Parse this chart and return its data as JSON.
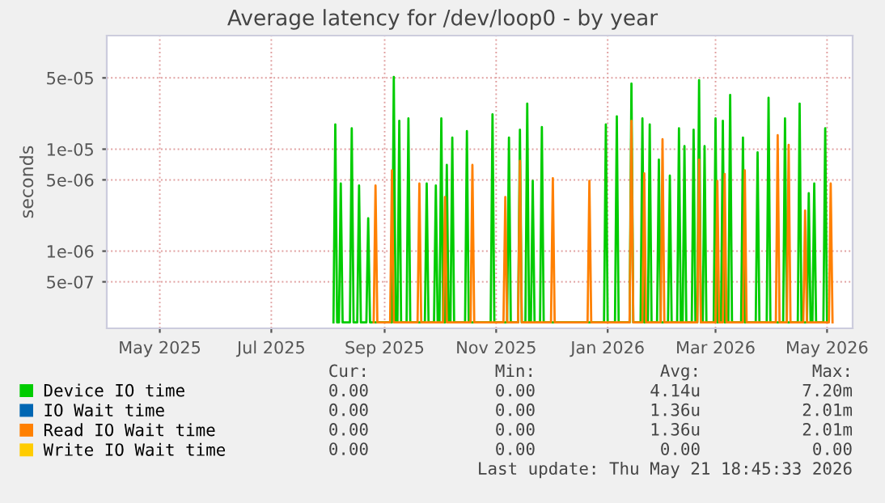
{
  "chart_data": {
    "type": "line",
    "title": "Average latency for /dev/loop0 - by year",
    "ylabel": "seconds",
    "log": "y",
    "grid": true,
    "legend": "bottom",
    "marker": "none",
    "line_style": "solid",
    "xlim": [
      "2025-04-02",
      "2026-05-15"
    ],
    "xticks": [
      {
        "value": "2025-05-01",
        "label": "May 2025"
      },
      {
        "value": "2025-07-01",
        "label": "Jul 2025"
      },
      {
        "value": "2025-09-01",
        "label": "Sep 2025"
      },
      {
        "value": "2025-11-01",
        "label": "Nov 2025"
      },
      {
        "value": "2026-01-01",
        "label": "Jan 2026"
      },
      {
        "value": "2026-03-01",
        "label": "Mar 2026"
      },
      {
        "value": "2026-05-01",
        "label": "May 2026"
      }
    ],
    "ylim": [
      1.75e-07,
      0.00013
    ],
    "yticks": [
      5e-07,
      1e-06,
      5e-06,
      1e-05,
      5e-05
    ],
    "series": [
      {
        "name": "Device IO time",
        "color": "#00cc00",
        "x": [
          "2025-08-04",
          "2025-08-05",
          "2025-08-06",
          "2025-08-07",
          "2025-08-08",
          "2025-08-09",
          "2025-08-13",
          "2025-08-14",
          "2025-08-15",
          "2025-08-17",
          "2025-08-18",
          "2025-08-19",
          "2025-08-22",
          "2025-08-23",
          "2025-08-24",
          "2025-09-05",
          "2025-09-06",
          "2025-09-07",
          "2025-09-08",
          "2025-09-09",
          "2025-09-10",
          "2025-09-13",
          "2025-09-14",
          "2025-09-15",
          "2025-09-23",
          "2025-09-24",
          "2025-09-25",
          "2025-09-28",
          "2025-09-29",
          "2025-09-30",
          "2025-10-01",
          "2025-10-02",
          "2025-10-03",
          "2025-10-04",
          "2025-10-05",
          "2025-10-06",
          "2025-10-07",
          "2025-10-08",
          "2025-10-09",
          "2025-10-15",
          "2025-10-16",
          "2025-10-17",
          "2025-10-29",
          "2025-10-30",
          "2025-10-31",
          "2025-11-07",
          "2025-11-08",
          "2025-11-09",
          "2025-11-13",
          "2025-11-14",
          "2025-11-15",
          "2025-11-17",
          "2025-11-18",
          "2025-11-19",
          "2025-11-20",
          "2025-11-21",
          "2025-11-22",
          "2025-11-25",
          "2025-11-26",
          "2025-11-27",
          "2025-12-30",
          "2025-12-31",
          "2026-01-01",
          "2026-01-05",
          "2026-01-06",
          "2026-01-07",
          "2026-01-13",
          "2026-01-14",
          "2026-01-15",
          "2026-01-19",
          "2026-01-20",
          "2026-01-21",
          "2026-01-23",
          "2026-01-24",
          "2026-01-25",
          "2026-01-28",
          "2026-01-29",
          "2026-01-30",
          "2026-02-03",
          "2026-02-04",
          "2026-02-05",
          "2026-02-08",
          "2026-02-09",
          "2026-02-10",
          "2026-02-11",
          "2026-02-12",
          "2026-02-13",
          "2026-02-16",
          "2026-02-17",
          "2026-02-18",
          "2026-02-19",
          "2026-02-20",
          "2026-02-21",
          "2026-02-22",
          "2026-02-23",
          "2026-02-24",
          "2026-02-28",
          "2026-03-01",
          "2026-03-02",
          "2026-03-04",
          "2026-03-05",
          "2026-03-06",
          "2026-03-08",
          "2026-03-09",
          "2026-03-10",
          "2026-03-15",
          "2026-03-16",
          "2026-03-17",
          "2026-03-23",
          "2026-03-24",
          "2026-03-25",
          "2026-03-29",
          "2026-03-30",
          "2026-03-31",
          "2026-04-07",
          "2026-04-08",
          "2026-04-09",
          "2026-04-15",
          "2026-04-16",
          "2026-04-17",
          "2026-04-20",
          "2026-04-21",
          "2026-04-22",
          "2026-04-23",
          "2026-04-24",
          "2026-04-25",
          "2026-04-29",
          "2026-04-30",
          "2026-05-01"
        ],
        "values": [
          2e-07,
          1.75e-05,
          2e-07,
          2e-07,
          4.6e-06,
          2e-07,
          2e-07,
          1.6e-05,
          2e-07,
          2e-07,
          4.4e-06,
          2e-07,
          2e-07,
          2.1e-06,
          2e-07,
          2e-07,
          5.1e-05,
          2e-07,
          2e-07,
          1.9e-05,
          2e-07,
          2e-07,
          2e-05,
          2e-07,
          2e-07,
          4.6e-06,
          2e-07,
          2e-07,
          4.4e-06,
          2e-07,
          2e-07,
          2e-05,
          2e-07,
          2e-07,
          7e-06,
          2e-07,
          2e-07,
          1.3e-05,
          2e-07,
          2e-07,
          1.5e-05,
          2e-07,
          2e-07,
          2.2e-05,
          2e-07,
          2e-07,
          1.3e-05,
          2e-07,
          2e-07,
          1.55e-05,
          2e-07,
          2e-07,
          2.8e-05,
          2e-07,
          2e-07,
          4.9e-06,
          2e-07,
          2e-07,
          1.65e-05,
          2e-07,
          2e-07,
          1.75e-05,
          2e-07,
          2e-07,
          2.1e-05,
          2e-07,
          2e-07,
          4.4e-05,
          2e-07,
          2e-07,
          2e-05,
          2e-07,
          2e-07,
          1.75e-05,
          2e-07,
          2e-07,
          7.9e-06,
          2e-07,
          2e-07,
          5.5e-06,
          2e-07,
          2e-07,
          1.6e-05,
          2e-07,
          2e-07,
          1.07e-05,
          2e-07,
          2e-07,
          1.55e-05,
          2e-07,
          2e-07,
          4.75e-05,
          2e-07,
          2e-07,
          1.07e-05,
          2e-07,
          2e-07,
          2e-05,
          2e-07,
          2e-07,
          1.9e-05,
          2e-07,
          2e-07,
          3.4e-05,
          2e-07,
          2e-07,
          1.3e-05,
          2e-07,
          2e-07,
          9.3e-06,
          2e-07,
          2e-07,
          3.2e-05,
          2e-07,
          2e-07,
          2e-05,
          2e-07,
          2e-07,
          2.8e-05,
          2e-07,
          2e-07,
          3.7e-06,
          2e-07,
          2e-07,
          4.6e-06,
          2e-07,
          2e-07,
          1.6e-05,
          2e-07
        ]
      },
      {
        "name": "IO Wait time",
        "color": "#0066b3"
      },
      {
        "name": "Read IO Wait time",
        "color": "#ff8000",
        "x": [
          "2025-08-26",
          "2025-08-27",
          "2025-08-28",
          "2025-09-04",
          "2025-09-05",
          "2025-09-06",
          "2025-09-19",
          "2025-09-20",
          "2025-09-21",
          "2025-10-03",
          "2025-10-04",
          "2025-10-05",
          "2025-10-18",
          "2025-10-19",
          "2025-10-20",
          "2025-11-05",
          "2025-11-06",
          "2025-11-07",
          "2025-11-13",
          "2025-11-14",
          "2025-11-15",
          "2025-12-01",
          "2025-12-02",
          "2025-12-03",
          "2025-12-21",
          "2025-12-22",
          "2025-12-23",
          "2026-01-13",
          "2026-01-14",
          "2026-01-15",
          "2026-01-20",
          "2026-01-21",
          "2026-01-22",
          "2026-01-30",
          "2026-01-31",
          "2026-02-01",
          "2026-02-19",
          "2026-02-20",
          "2026-02-21",
          "2026-03-01",
          "2026-03-02",
          "2026-03-03",
          "2026-03-05",
          "2026-03-06",
          "2026-03-07",
          "2026-03-16",
          "2026-03-17",
          "2026-03-18",
          "2026-04-03",
          "2026-04-04",
          "2026-04-05",
          "2026-04-09",
          "2026-04-10",
          "2026-04-11",
          "2026-04-18",
          "2026-04-19",
          "2026-04-20",
          "2026-05-02",
          "2026-05-03",
          "2026-05-04"
        ],
        "values": [
          2e-07,
          4.4e-06,
          2e-07,
          2e-07,
          6.2e-06,
          2e-07,
          2e-07,
          4.6e-06,
          2e-07,
          2e-07,
          3.4e-06,
          2e-07,
          2e-07,
          7e-06,
          2e-07,
          2e-07,
          3.4e-06,
          2e-07,
          2e-07,
          7.7e-06,
          2e-07,
          2e-07,
          5.2e-06,
          2e-07,
          2e-07,
          4.9e-06,
          2e-07,
          2e-07,
          1.9e-05,
          2e-07,
          2e-07,
          5.8e-06,
          2e-07,
          2e-07,
          1.25e-05,
          2e-07,
          2e-07,
          7.9e-06,
          2e-07,
          2e-07,
          4.9e-06,
          2e-07,
          2e-07,
          5.7e-06,
          2e-07,
          2e-07,
          6.2e-06,
          2e-07,
          2e-07,
          1.37e-05,
          2e-07,
          2e-07,
          1.1e-05,
          2e-07,
          2e-07,
          2.5e-06,
          2e-07,
          2e-07,
          4.6e-06,
          2e-07
        ]
      },
      {
        "name": "Write IO Wait time",
        "color": "#ffcc00"
      }
    ],
    "annotations": [
      "Cur:",
      "Min:",
      "Avg:",
      "Max:",
      "0.00",
      "0.00",
      "4.14u",
      "7.20m",
      "0.00",
      "0.00",
      "1.36u",
      "2.01m",
      "0.00",
      "0.00",
      "1.36u",
      "2.01m",
      "0.00",
      "0.00",
      "0.00",
      "0.00",
      "Last update: Thu May 21 18:45:33 2026"
    ]
  }
}
